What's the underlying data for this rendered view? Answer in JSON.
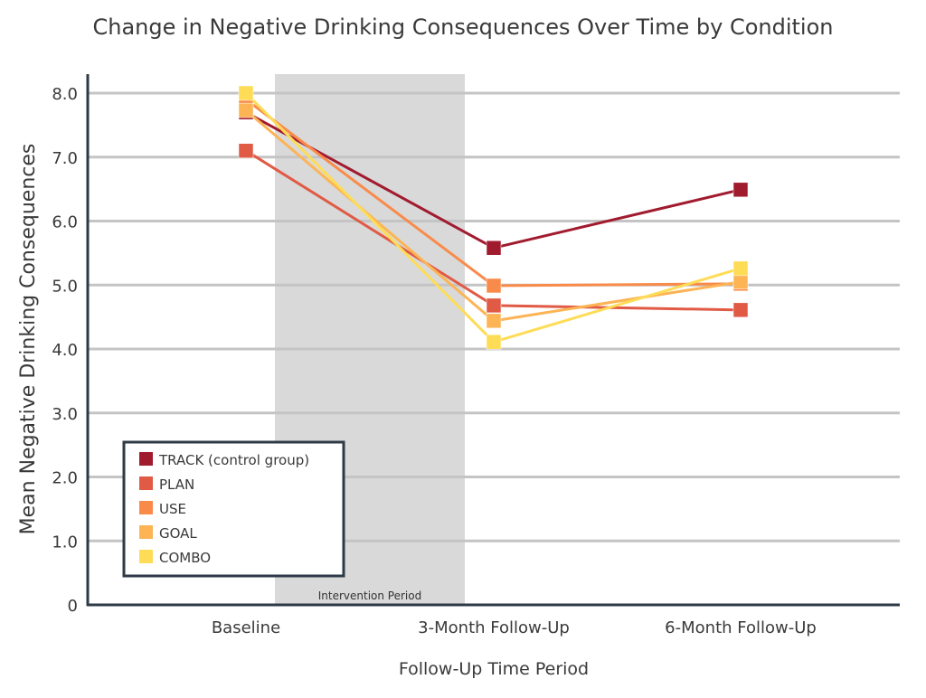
{
  "chart_data": {
    "type": "line",
    "title": "Change in Negative Drinking Consequences Over Time by Condition",
    "xlabel": "Follow-Up Time Period",
    "ylabel": "Mean Negative Drinking Consequences",
    "categories": [
      "Baseline",
      "3-Month Follow-Up",
      "6-Month Follow-Up"
    ],
    "ylim": [
      0,
      8.0
    ],
    "yticks": [
      "0",
      "1.0",
      "2.0",
      "3.0",
      "4.0",
      "5.0",
      "6.0",
      "7.0",
      "8.0"
    ],
    "grid": true,
    "legend_position": "bottom-left",
    "annotation": "Intervention Period",
    "series": [
      {
        "name": "TRACK (control group)",
        "color": "#a11b2f",
        "values": [
          7.7,
          5.58,
          6.49
        ]
      },
      {
        "name": "PLAN",
        "color": "#e05a45",
        "values": [
          7.1,
          4.68,
          4.61
        ]
      },
      {
        "name": "USE",
        "color": "#f98b4a",
        "values": [
          7.9,
          4.99,
          5.02
        ]
      },
      {
        "name": "GOAL",
        "color": "#fcb455",
        "values": [
          7.73,
          4.44,
          5.05
        ]
      },
      {
        "name": "COMBO",
        "color": "#fedc56",
        "values": [
          8.0,
          4.11,
          5.26
        ]
      }
    ]
  }
}
